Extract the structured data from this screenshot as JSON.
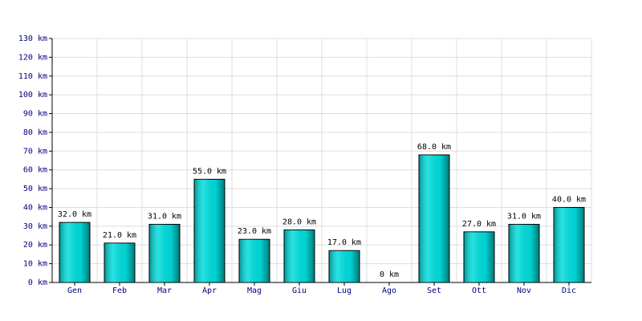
{
  "chart_data": {
    "type": "bar",
    "categories": [
      "Gen",
      "Feb",
      "Mar",
      "Apr",
      "Mag",
      "Giu",
      "Lug",
      "Ago",
      "Set",
      "Ott",
      "Nov",
      "Dic"
    ],
    "values": [
      32,
      21,
      31,
      55,
      23,
      28,
      17,
      0,
      68,
      27,
      31,
      40
    ],
    "value_labels": [
      "32.0 km",
      "21.0 km",
      "31.0 km",
      "55.0 km",
      "23.0 km",
      "28.0 km",
      "17.0 km",
      "0 km",
      "68.0 km",
      "27.0 km",
      "31.0 km",
      "40.0 km"
    ],
    "color": "#00dddd",
    "ylim": [
      0,
      130
    ],
    "yticks": [
      {
        "value": 0,
        "label": "0 km"
      },
      {
        "value": 10,
        "label": "10 km"
      },
      {
        "value": 20,
        "label": "20 km"
      },
      {
        "value": 30,
        "label": "30 km"
      },
      {
        "value": 40,
        "label": "40 km"
      },
      {
        "value": 50,
        "label": "50 km"
      },
      {
        "value": 60,
        "label": "60 km"
      },
      {
        "value": 70,
        "label": "70 km"
      },
      {
        "value": 80,
        "label": "80 km"
      },
      {
        "value": 90,
        "label": "90 km"
      },
      {
        "value": 100,
        "label": "100 km"
      },
      {
        "value": 110,
        "label": "110 km"
      },
      {
        "value": 120,
        "label": "120 km"
      },
      {
        "value": 130,
        "label": "130 km"
      }
    ],
    "grid": true
  }
}
